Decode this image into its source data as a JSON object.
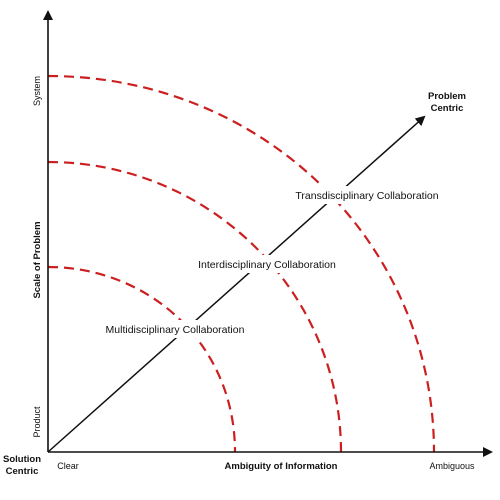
{
  "diagram": {
    "x_axis": {
      "title": "Ambiguity of Information",
      "start_label": "Clear",
      "end_label": "Ambiguous"
    },
    "y_axis": {
      "title": "Scale of Problem",
      "start_label": "Product",
      "end_label": "System"
    },
    "origin_label_line1": "Solution",
    "origin_label_line2": "Centric",
    "arrow_label_line1": "Problem",
    "arrow_label_line2": "Centric",
    "regions": [
      {
        "label": "Multidisciplinary Collaboration"
      },
      {
        "label": "Interdisciplinary Collaboration"
      },
      {
        "label": "Transdisciplinary Collaboration"
      }
    ],
    "colors": {
      "boundary": "#cc1f1f",
      "axis": "#111111"
    }
  }
}
